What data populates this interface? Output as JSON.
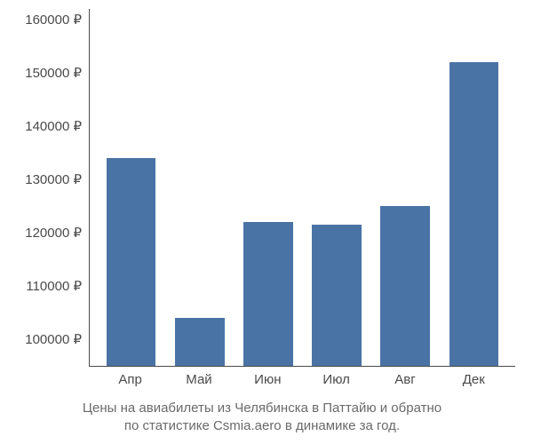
{
  "chart": {
    "type": "bar",
    "categories": [
      "Апр",
      "Май",
      "Июн",
      "Июл",
      "Авг",
      "Дек"
    ],
    "values": [
      134000,
      104000,
      122000,
      121500,
      125000,
      152000
    ],
    "bar_color": "#4a73a5",
    "y_ticks": [
      100000,
      110000,
      120000,
      130000,
      140000,
      150000,
      160000
    ],
    "y_tick_labels": [
      "100000 ₽",
      "110000 ₽",
      "120000 ₽",
      "130000 ₽",
      "140000 ₽",
      "150000 ₽",
      "160000 ₽"
    ],
    "ylim_min": 95000,
    "ylim_max": 162000,
    "axis_color": "#4a4a4a",
    "label_color": "#4a4a4a",
    "label_fontsize": 15,
    "background_color": "#ffffff",
    "bar_width": 0.72
  },
  "caption": {
    "line1": "Цены на авиабилеты из Челябинска в Паттайю и обратно",
    "line2": "по статистике Csmia.aero в динамике за год.",
    "color": "#6a6a6a",
    "fontsize": 15
  }
}
